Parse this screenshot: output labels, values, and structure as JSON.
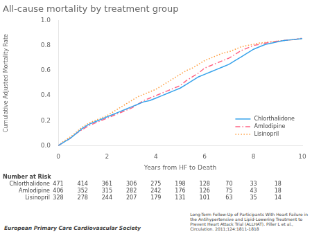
{
  "chart_data": {
    "type": "line",
    "title": "All-cause mortality by treatment group",
    "xlabel": "Years from HF to Death",
    "ylabel": "Cumulative Adjusted Mortality Rate",
    "xlim": [
      0,
      10
    ],
    "ylim": [
      0.0,
      1.0
    ],
    "xticks": [
      0,
      2,
      4,
      6,
      8,
      10
    ],
    "yticks": [
      {
        "value": 0.0,
        "label": "0.0"
      },
      0.2,
      0.4,
      0.6,
      0.8,
      {
        "value": 1.0,
        "label": "1.0"
      }
    ],
    "grid": false,
    "legend": "lower right",
    "x": [
      0,
      0.25,
      0.5,
      0.75,
      1.0,
      1.25,
      1.5,
      1.75,
      2.0,
      2.25,
      2.5,
      2.75,
      3.0,
      3.25,
      3.5,
      3.75,
      4.0,
      4.25,
      4.5,
      4.75,
      5.0,
      5.25,
      5.5,
      5.75,
      6.0,
      6.25,
      6.5,
      6.75,
      7.0,
      7.25,
      7.5,
      7.75,
      8.0,
      8.25,
      8.5,
      8.75,
      9.0,
      9.25,
      9.5,
      9.75,
      10.0
    ],
    "series": [
      {
        "name": "Chlorthalidone",
        "line_style": "solid",
        "values": [
          0.0,
          0.03,
          0.06,
          0.1,
          0.14,
          0.17,
          0.19,
          0.21,
          0.23,
          0.25,
          0.27,
          0.29,
          0.31,
          0.33,
          0.35,
          0.36,
          0.38,
          0.4,
          0.42,
          0.44,
          0.46,
          0.49,
          0.52,
          0.55,
          0.57,
          0.59,
          0.61,
          0.63,
          0.65,
          0.68,
          0.71,
          0.74,
          0.77,
          0.79,
          0.81,
          0.82,
          0.83,
          0.84,
          0.845,
          0.85,
          0.855
        ]
      },
      {
        "name": "Amlodipine",
        "line_style": "dashdot",
        "values": [
          0.0,
          0.03,
          0.06,
          0.1,
          0.13,
          0.16,
          0.18,
          0.2,
          0.22,
          0.24,
          0.26,
          0.28,
          0.3,
          0.33,
          0.36,
          0.38,
          0.4,
          0.42,
          0.44,
          0.46,
          0.48,
          0.52,
          0.55,
          0.58,
          0.62,
          0.64,
          0.66,
          0.68,
          0.7,
          0.73,
          0.76,
          0.78,
          0.8,
          0.81,
          0.82,
          0.83,
          0.835,
          0.84,
          0.845,
          0.85,
          0.86
        ]
      },
      {
        "name": "Lisinopril",
        "line_style": "dotted",
        "values": [
          0.0,
          0.04,
          0.07,
          0.11,
          0.15,
          0.18,
          0.2,
          0.22,
          0.24,
          0.27,
          0.3,
          0.33,
          0.36,
          0.39,
          0.41,
          0.43,
          0.45,
          0.48,
          0.51,
          0.54,
          0.57,
          0.6,
          0.62,
          0.65,
          0.68,
          0.7,
          0.72,
          0.74,
          0.75,
          0.77,
          0.79,
          0.8,
          0.81,
          0.82,
          0.825,
          0.83,
          0.835,
          0.84,
          0.845,
          0.85,
          0.855
        ]
      }
    ],
    "risk_table": {
      "header": "Number at Risk",
      "x": [
        0,
        1,
        2,
        3,
        4,
        5,
        6,
        7,
        8,
        9
      ],
      "rows": [
        {
          "label": "Chlorthalidone",
          "values": [
            471,
            414,
            361,
            306,
            275,
            198,
            128,
            70,
            33,
            18
          ]
        },
        {
          "label": "Amlodipine",
          "values": [
            406,
            352,
            315,
            282,
            242,
            176,
            126,
            75,
            43,
            18
          ]
        },
        {
          "label": "Lisinopril",
          "values": [
            328,
            278,
            244,
            207,
            179,
            131,
            101,
            63,
            35,
            14
          ]
        }
      ]
    },
    "annotations": [
      "European Primary Care Cardiovascular Society",
      "Long-Term Follow-Up of Participants With Heart Failure in\nthe Antihypertensive and Lipid-Lowering Treatment to\nPrevent Heart Attack Trial (ALLHAT). Piller L et al.,\nCirculation. 2011;124:1811-1818"
    ]
  }
}
